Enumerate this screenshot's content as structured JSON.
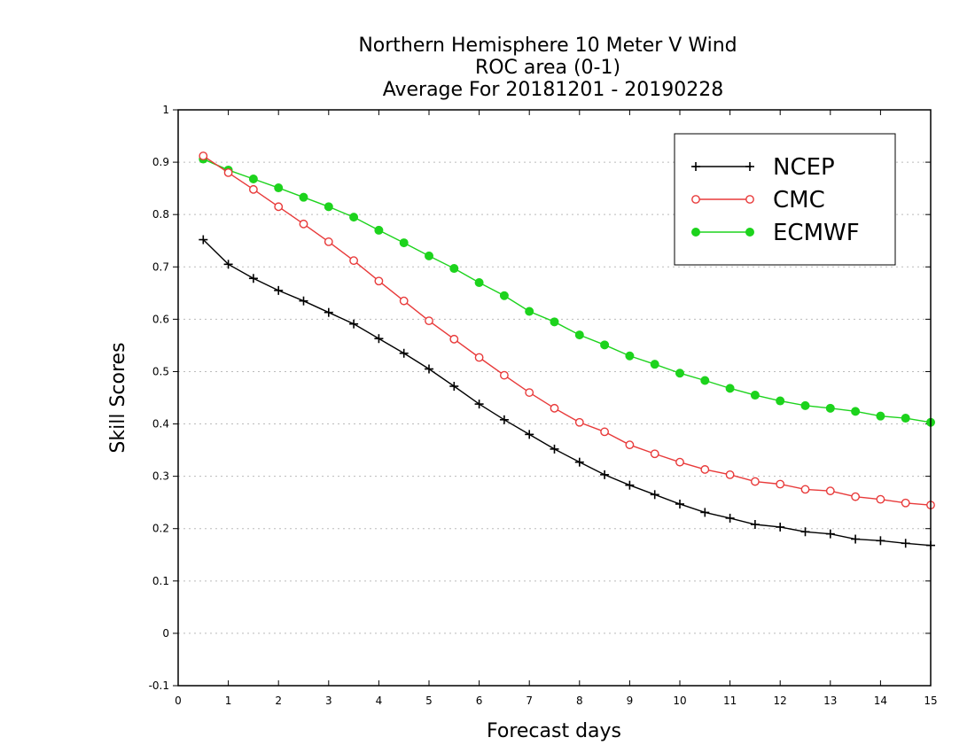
{
  "chart_data": {
    "type": "line",
    "title": [
      "Northern Hemisphere 10 Meter V Wind",
      "ROC area (0-1)",
      "Average For 20181201 - 20190228"
    ],
    "xlabel": "Forecast days",
    "ylabel": "Skill Scores",
    "xlim": [
      0,
      15
    ],
    "ylim": [
      -0.1,
      1
    ],
    "xticks": [
      "0",
      "1",
      "2",
      "3",
      "4",
      "5",
      "6",
      "7",
      "8",
      "9",
      "10",
      "11",
      "12",
      "13",
      "14",
      "15"
    ],
    "yticks": [
      "-0.1",
      "0",
      "0.1",
      "0.2",
      "0.3",
      "0.4",
      "0.5",
      "0.6",
      "0.7",
      "0.8",
      "0.9",
      "1"
    ],
    "grid": true,
    "legend_position": "top-right",
    "x": [
      0.5,
      1,
      1.5,
      2,
      2.5,
      3,
      3.5,
      4,
      4.5,
      5,
      5.5,
      6,
      6.5,
      7,
      7.5,
      8,
      8.5,
      9,
      9.5,
      10,
      10.5,
      11,
      11.5,
      12,
      12.5,
      13,
      13.5,
      14,
      14.5,
      15
    ],
    "series": [
      {
        "name": "NCEP",
        "color": "#000000",
        "marker": "plus",
        "values": [
          0.752,
          0.705,
          0.678,
          0.655,
          0.635,
          0.613,
          0.591,
          0.563,
          0.535,
          0.505,
          0.472,
          0.438,
          0.408,
          0.38,
          0.352,
          0.327,
          0.303,
          0.283,
          0.265,
          0.247,
          0.231,
          0.22,
          0.208,
          0.203,
          0.194,
          0.19,
          0.18,
          0.177,
          0.172,
          0.168
        ]
      },
      {
        "name": "CMC",
        "color": "#e83a3a",
        "marker": "open-circle",
        "values": [
          0.912,
          0.88,
          0.848,
          0.815,
          0.782,
          0.748,
          0.712,
          0.673,
          0.635,
          0.597,
          0.562,
          0.527,
          0.493,
          0.46,
          0.43,
          0.403,
          0.385,
          0.36,
          0.343,
          0.327,
          0.313,
          0.303,
          0.29,
          0.285,
          0.275,
          0.272,
          0.261,
          0.256,
          0.249,
          0.245
        ]
      },
      {
        "name": "ECMWF",
        "color": "#1dd31d",
        "marker": "filled-circle",
        "values": [
          0.906,
          0.885,
          0.868,
          0.851,
          0.833,
          0.815,
          0.795,
          0.77,
          0.746,
          0.721,
          0.697,
          0.67,
          0.645,
          0.615,
          0.595,
          0.57,
          0.551,
          0.53,
          0.514,
          0.497,
          0.483,
          0.468,
          0.455,
          0.444,
          0.435,
          0.43,
          0.424,
          0.415,
          0.411,
          0.403
        ]
      }
    ]
  }
}
